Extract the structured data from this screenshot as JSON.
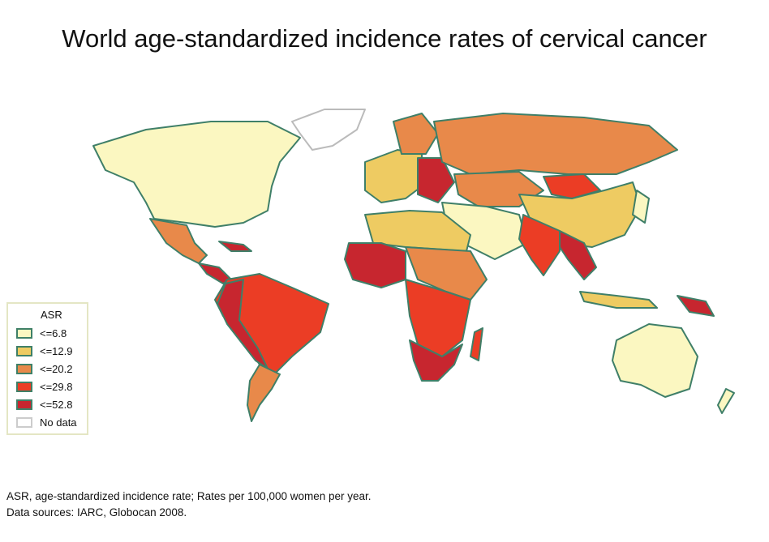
{
  "title": "World age-standardized incidence rates of cervical cancer",
  "legend": {
    "title": "ASR",
    "items": [
      {
        "label": "<=6.8",
        "color": "#fbf7c1"
      },
      {
        "label": "<=12.9",
        "color": "#eecb62"
      },
      {
        "label": "<=20.2",
        "color": "#e8894a"
      },
      {
        "label": "<=29.8",
        "color": "#eb3d25"
      },
      {
        "label": "<=52.8",
        "color": "#c7262f"
      },
      {
        "label": "No data",
        "color": "#ffffff"
      }
    ]
  },
  "border_color": "#3f7f68",
  "footnote": {
    "line1": "ASR, age-standardized incidence rate; Rates per 100,000 women per year.",
    "line2": "Data sources: IARC, Globocan 2008."
  }
}
